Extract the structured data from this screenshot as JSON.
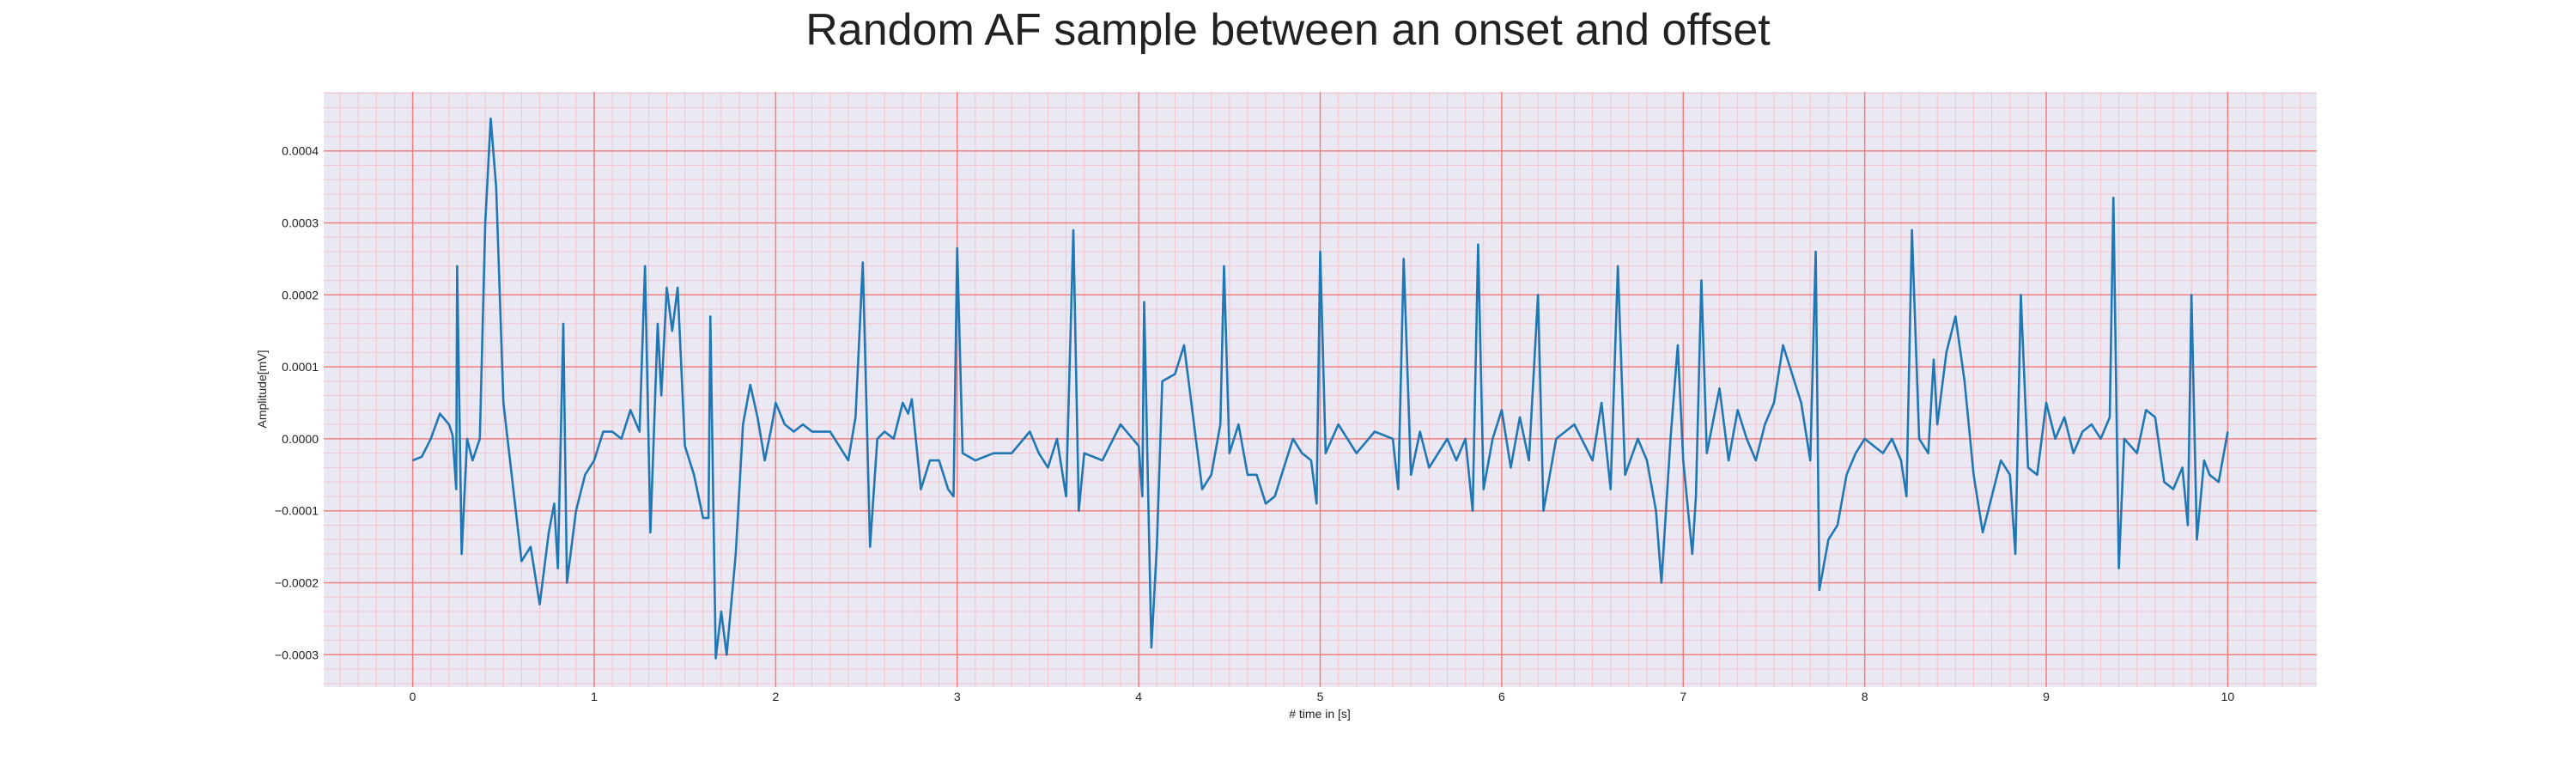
{
  "chart_data": {
    "type": "line",
    "title": "Random AF sample between an onset and offset",
    "x_label": "# time in [s]",
    "y_label": "Amplitude[mV]",
    "xlim": [
      -0.49,
      10.49
    ],
    "ylim": [
      -0.000345,
      0.000482
    ],
    "xticks": [
      0,
      1,
      2,
      3,
      4,
      5,
      6,
      7,
      8,
      9,
      10
    ],
    "yticks": [
      {
        "value": -0.0003,
        "label": "−0.0003"
      },
      {
        "value": -0.0002,
        "label": "−0.0002"
      },
      {
        "value": -0.0001,
        "label": "−0.0001"
      },
      {
        "value": 0,
        "label": "0.0000"
      },
      0.0001,
      0.0002,
      0.0003,
      0.0004
    ],
    "grid": true,
    "minor_grid": true,
    "background": "#eae8f2",
    "grid_color": "#f08080",
    "minor_grid_color": "#f4c4cc",
    "series": [
      {
        "color": "#1f77b4",
        "x": [
          0.0,
          0.05,
          0.1,
          0.15,
          0.2,
          0.22,
          0.24,
          0.245,
          0.27,
          0.3,
          0.33,
          0.37,
          0.4,
          0.43,
          0.46,
          0.5,
          0.55,
          0.6,
          0.65,
          0.7,
          0.75,
          0.78,
          0.8,
          0.83,
          0.85,
          0.9,
          0.95,
          1.0,
          1.05,
          1.1,
          1.15,
          1.2,
          1.25,
          1.28,
          1.31,
          1.35,
          1.37,
          1.4,
          1.43,
          1.46,
          1.5,
          1.55,
          1.6,
          1.63,
          1.64,
          1.67,
          1.7,
          1.73,
          1.78,
          1.82,
          1.86,
          1.9,
          1.94,
          1.98,
          2.0,
          2.05,
          2.1,
          2.15,
          2.2,
          2.3,
          2.4,
          2.44,
          2.48,
          2.52,
          2.56,
          2.6,
          2.65,
          2.7,
          2.73,
          2.75,
          2.8,
          2.85,
          2.9,
          2.95,
          2.98,
          3.0,
          3.03,
          3.1,
          3.2,
          3.3,
          3.4,
          3.45,
          3.5,
          3.55,
          3.6,
          3.64,
          3.67,
          3.7,
          3.8,
          3.9,
          4.0,
          4.02,
          4.03,
          4.07,
          4.1,
          4.13,
          4.2,
          4.25,
          4.3,
          4.35,
          4.4,
          4.45,
          4.47,
          4.5,
          4.55,
          4.6,
          4.65,
          4.7,
          4.75,
          4.8,
          4.85,
          4.9,
          4.95,
          4.98,
          5.0,
          5.03,
          5.1,
          5.2,
          5.3,
          5.4,
          5.43,
          5.46,
          5.5,
          5.55,
          5.6,
          5.7,
          5.75,
          5.8,
          5.84,
          5.87,
          5.9,
          5.95,
          6.0,
          6.05,
          6.1,
          6.15,
          6.2,
          6.23,
          6.3,
          6.4,
          6.5,
          6.55,
          6.6,
          6.64,
          6.68,
          6.75,
          6.8,
          6.85,
          6.88,
          6.93,
          6.97,
          7.0,
          7.05,
          7.07,
          7.1,
          7.13,
          7.2,
          7.25,
          7.3,
          7.35,
          7.4,
          7.45,
          7.5,
          7.55,
          7.6,
          7.65,
          7.7,
          7.73,
          7.75,
          7.8,
          7.85,
          7.9,
          7.95,
          8.0,
          8.1,
          8.15,
          8.2,
          8.23,
          8.26,
          8.3,
          8.35,
          8.38,
          8.4,
          8.45,
          8.5,
          8.55,
          8.6,
          8.65,
          8.7,
          8.75,
          8.8,
          8.83,
          8.86,
          8.9,
          8.95,
          9.0,
          9.05,
          9.1,
          9.15,
          9.2,
          9.25,
          9.3,
          9.35,
          9.37,
          9.4,
          9.43,
          9.5,
          9.55,
          9.6,
          9.65,
          9.7,
          9.75,
          9.78,
          9.8,
          9.83,
          9.87,
          9.9,
          9.95,
          10.0
        ],
        "values": [
          -3e-05,
          -2.5e-05,
          0.0,
          3.5e-05,
          2e-05,
          5e-06,
          -7e-05,
          0.00024,
          -0.00016,
          0.0,
          -3e-05,
          0.0,
          0.0003,
          0.000445,
          0.00035,
          5e-05,
          -6e-05,
          -0.00017,
          -0.00015,
          -0.00023,
          -0.00013,
          -9e-05,
          -0.00018,
          0.00016,
          -0.0002,
          -0.0001,
          -5e-05,
          -3e-05,
          1e-05,
          1e-05,
          0.0,
          4e-05,
          1e-05,
          0.00024,
          -0.00013,
          0.00016,
          6e-05,
          0.00021,
          0.00015,
          0.00021,
          -1e-05,
          -5e-05,
          -0.00011,
          -0.00011,
          0.00017,
          -0.000305,
          -0.00024,
          -0.0003,
          -0.00016,
          2e-05,
          7.5e-05,
          3e-05,
          -3e-05,
          2e-05,
          5e-05,
          2e-05,
          1e-05,
          2e-05,
          1e-05,
          1e-05,
          -3e-05,
          3e-05,
          0.000245,
          -0.00015,
          0.0,
          1e-05,
          0.0,
          5e-05,
          3.5e-05,
          5.5e-05,
          -7e-05,
          -3e-05,
          -3e-05,
          -7e-05,
          -8e-05,
          0.000265,
          -2e-05,
          -3e-05,
          -2e-05,
          -2e-05,
          1e-05,
          -2e-05,
          -4e-05,
          0.0,
          -8e-05,
          0.00029,
          -0.0001,
          -2e-05,
          -3e-05,
          2e-05,
          -1e-05,
          -8e-05,
          0.00019,
          -0.00029,
          -0.00015,
          8e-05,
          9e-05,
          0.00013,
          3e-05,
          -7e-05,
          -5e-05,
          2e-05,
          0.00024,
          -2e-05,
          2e-05,
          -5e-05,
          -5e-05,
          -9e-05,
          -8e-05,
          -4e-05,
          0.0,
          -2e-05,
          -3e-05,
          -9e-05,
          0.00026,
          -2e-05,
          2e-05,
          -2e-05,
          1e-05,
          0.0,
          -7e-05,
          0.00025,
          -5e-05,
          1e-05,
          -4e-05,
          0.0,
          -3e-05,
          0.0,
          -0.0001,
          0.00027,
          -7e-05,
          0.0,
          4e-05,
          -4e-05,
          3e-05,
          -3e-05,
          0.0002,
          -0.0001,
          0.0,
          2e-05,
          -3e-05,
          5e-05,
          -7e-05,
          0.00024,
          -5e-05,
          0.0,
          -3e-05,
          -0.0001,
          -0.0002,
          0.0,
          0.00013,
          -3e-05,
          -0.00016,
          -8e-05,
          0.00022,
          -2e-05,
          7e-05,
          -3e-05,
          4e-05,
          0.0,
          -3e-05,
          2e-05,
          5e-05,
          0.00013,
          9e-05,
          5e-05,
          -3e-05,
          0.00026,
          -0.00021,
          -0.00014,
          -0.00012,
          -5e-05,
          -2e-05,
          0.0,
          -2e-05,
          0.0,
          -3e-05,
          -8e-05,
          0.00029,
          0.0,
          -2e-05,
          0.00011,
          2e-05,
          0.00012,
          0.00017,
          8e-05,
          -5e-05,
          -0.00013,
          -8e-05,
          -3e-05,
          -5e-05,
          -0.00016,
          0.0002,
          -4e-05,
          -5e-05,
          5e-05,
          0.0,
          3e-05,
          -2e-05,
          1e-05,
          2e-05,
          0.0,
          3e-05,
          0.000335,
          -0.00018,
          0.0,
          -2e-05,
          4e-05,
          3e-05,
          -6e-05,
          -7e-05,
          -4e-05,
          -0.00012,
          0.0002,
          -0.00014,
          -3e-05,
          -5e-05,
          -6e-05,
          1e-05
        ]
      }
    ]
  }
}
